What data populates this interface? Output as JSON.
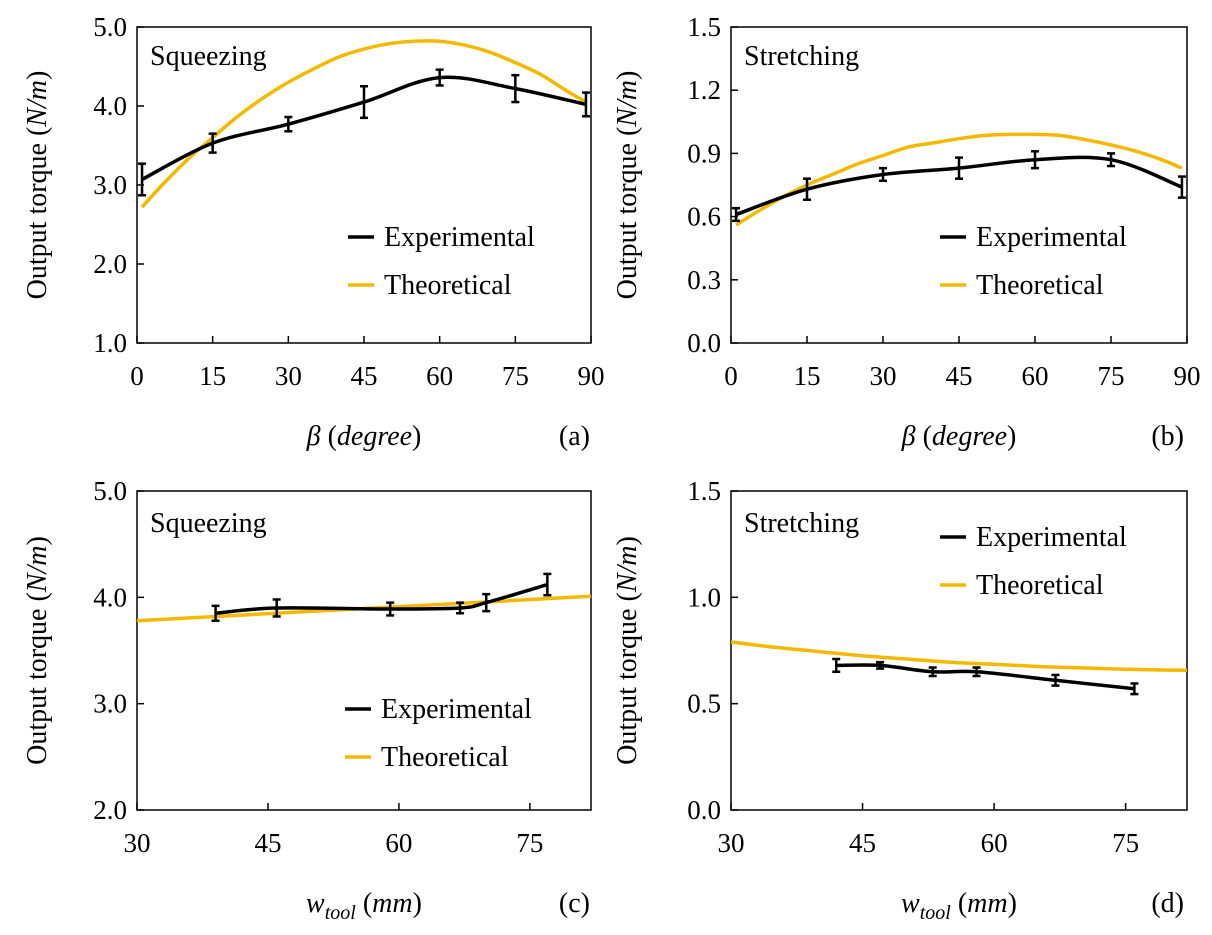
{
  "colors": {
    "experimental": "#000000",
    "theoretical": "#f5b800"
  },
  "chart_data": [
    {
      "type": "line",
      "panel_label": "(a)",
      "annotation": "Squeezing",
      "ylabel_main": "Output torque (",
      "ylabel_unit": "N/m",
      "ylabel_close": ")",
      "xlabel_symbol": "β",
      "xlabel_open": " (",
      "xlabel_unit": "degree",
      "xlabel_close": ")",
      "xlim": [
        0,
        90
      ],
      "ylim": [
        1.0,
        5.0
      ],
      "xticks": [
        "0",
        "15",
        "30",
        "45",
        "60",
        "75",
        "90"
      ],
      "xtick_values": [
        0,
        15,
        30,
        45,
        60,
        75,
        90
      ],
      "yticks": [
        "1.0",
        "2.0",
        "3.0",
        "4.0",
        "5.0"
      ],
      "ytick_values": [
        1,
        2,
        3,
        4,
        5
      ],
      "legend_position": "lower-right",
      "series": [
        {
          "name": "Experimental",
          "style": "experimental",
          "x": [
            1,
            15,
            30,
            45,
            60,
            75,
            89
          ],
          "y": [
            3.07,
            3.53,
            3.77,
            4.05,
            4.36,
            4.22,
            4.02
          ],
          "err": [
            0.2,
            0.12,
            0.09,
            0.2,
            0.1,
            0.17,
            0.15
          ]
        },
        {
          "name": "Theoretical",
          "style": "theoretical",
          "x": [
            1,
            5,
            10,
            15,
            20,
            25,
            30,
            35,
            40,
            45,
            50,
            55,
            60,
            65,
            70,
            75,
            80,
            85,
            89
          ],
          "y": [
            2.72,
            3.0,
            3.32,
            3.6,
            3.87,
            4.1,
            4.3,
            4.47,
            4.62,
            4.72,
            4.79,
            4.82,
            4.82,
            4.77,
            4.68,
            4.55,
            4.4,
            4.2,
            4.05
          ]
        }
      ]
    },
    {
      "type": "line",
      "panel_label": "(b)",
      "annotation": "Stretching",
      "ylabel_main": "Output torque (",
      "ylabel_unit": "N/m",
      "ylabel_close": ")",
      "xlabel_symbol": "β",
      "xlabel_open": " (",
      "xlabel_unit": "degree",
      "xlabel_close": ")",
      "xlim": [
        0,
        90
      ],
      "ylim": [
        0.0,
        1.5
      ],
      "xticks": [
        "0",
        "15",
        "30",
        "45",
        "60",
        "75",
        "90"
      ],
      "xtick_values": [
        0,
        15,
        30,
        45,
        60,
        75,
        90
      ],
      "yticks": [
        "0.0",
        "0.3",
        "0.6",
        "0.9",
        "1.2",
        "1.5"
      ],
      "ytick_values": [
        0,
        0.3,
        0.6,
        0.9,
        1.2,
        1.5
      ],
      "legend_position": "center-right",
      "series": [
        {
          "name": "Experimental",
          "style": "experimental",
          "x": [
            1,
            15,
            30,
            45,
            60,
            75,
            89
          ],
          "y": [
            0.61,
            0.73,
            0.8,
            0.83,
            0.87,
            0.87,
            0.74
          ],
          "err": [
            0.03,
            0.05,
            0.03,
            0.05,
            0.04,
            0.03,
            0.05
          ]
        },
        {
          "name": "Theoretical",
          "style": "theoretical",
          "x": [
            1,
            5,
            10,
            15,
            20,
            25,
            30,
            35,
            40,
            45,
            50,
            55,
            60,
            65,
            70,
            75,
            80,
            85,
            89
          ],
          "y": [
            0.56,
            0.62,
            0.69,
            0.75,
            0.8,
            0.85,
            0.89,
            0.93,
            0.95,
            0.97,
            0.985,
            0.99,
            0.99,
            0.985,
            0.965,
            0.94,
            0.91,
            0.87,
            0.83
          ]
        }
      ]
    },
    {
      "type": "line",
      "panel_label": "(c)",
      "annotation": "Squeezing",
      "ylabel_main": "Output torque (",
      "ylabel_unit": "N/m",
      "ylabel_close": ")",
      "xlabel_symbol": "w",
      "xlabel_sub": "tool",
      "xlabel_open": " (",
      "xlabel_unit": "mm",
      "xlabel_close": ")",
      "xlim": [
        30,
        82
      ],
      "ylim": [
        2.0,
        5.0
      ],
      "xticks": [
        "30",
        "45",
        "60",
        "75"
      ],
      "xtick_values": [
        30,
        45,
        60,
        75
      ],
      "yticks": [
        "2.0",
        "3.0",
        "4.0",
        "5.0"
      ],
      "ytick_values": [
        2,
        3,
        4,
        5
      ],
      "legend_position": "lower-right",
      "series": [
        {
          "name": "Experimental",
          "style": "experimental",
          "x": [
            39,
            46,
            59,
            67,
            70,
            77
          ],
          "y": [
            3.85,
            3.9,
            3.89,
            3.9,
            3.95,
            4.12
          ],
          "err": [
            0.07,
            0.08,
            0.06,
            0.05,
            0.08,
            0.1
          ]
        },
        {
          "name": "Theoretical",
          "style": "theoretical",
          "x": [
            30,
            82
          ],
          "y": [
            3.78,
            4.01
          ]
        }
      ]
    },
    {
      "type": "line",
      "panel_label": "(d)",
      "annotation": "Stretching",
      "ylabel_main": "Output torque (",
      "ylabel_unit": "N/m",
      "ylabel_close": ")",
      "xlabel_symbol": "w",
      "xlabel_sub": "tool",
      "xlabel_open": " (",
      "xlabel_unit": "mm",
      "xlabel_close": ")",
      "xlim": [
        30,
        82
      ],
      "ylim": [
        0.0,
        1.5
      ],
      "xticks": [
        "30",
        "45",
        "60",
        "75"
      ],
      "xtick_values": [
        30,
        45,
        60,
        75
      ],
      "yticks": [
        "0.0",
        "0.5",
        "1.0",
        "1.5"
      ],
      "ytick_values": [
        0,
        0.5,
        1.0,
        1.5
      ],
      "legend_position": "top-right",
      "series": [
        {
          "name": "Experimental",
          "style": "experimental",
          "x": [
            42,
            47,
            53,
            58,
            67,
            76
          ],
          "y": [
            0.68,
            0.68,
            0.65,
            0.65,
            0.61,
            0.57
          ],
          "err": [
            0.03,
            0.015,
            0.02,
            0.02,
            0.025,
            0.025
          ]
        },
        {
          "name": "Theoretical",
          "style": "theoretical",
          "x": [
            30,
            35,
            40,
            45,
            50,
            55,
            60,
            65,
            70,
            75,
            80,
            82
          ],
          "y": [
            0.79,
            0.765,
            0.745,
            0.725,
            0.71,
            0.695,
            0.685,
            0.675,
            0.668,
            0.662,
            0.658,
            0.657
          ]
        }
      ]
    }
  ]
}
